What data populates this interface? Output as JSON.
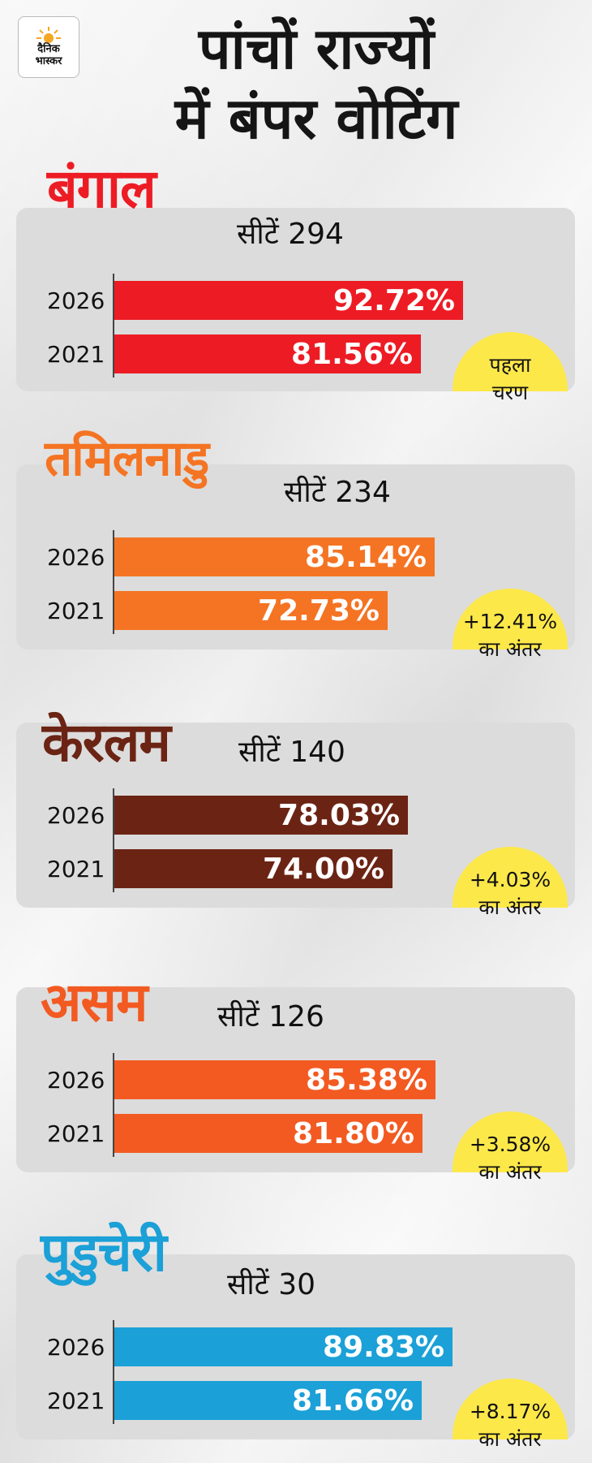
{
  "brand": {
    "line1": "दैनिक",
    "line2": "भास्कर"
  },
  "headline": {
    "line1": "पांचों राज्यों",
    "line2": "में बंपर वोटिंग"
  },
  "colors": {
    "bengal": "#ed1c24",
    "tamilnadu": "#f47423",
    "kerala": "#6b2414",
    "assam": "#f25a22",
    "puducherry": "#1ba0d7",
    "badge": "#fde84a"
  },
  "chart_data": {
    "type": "bar",
    "orientation": "horizontal",
    "categories": [
      "2026",
      "2021"
    ],
    "xlim": [
      0,
      100
    ],
    "unit": "%",
    "states": [
      {
        "key": "bengal",
        "name": "बंगाल",
        "seats_label": "सीटें 294",
        "values": [
          92.72,
          81.56
        ],
        "labels": [
          "92.72%",
          "81.56%"
        ],
        "badge": [
          "पहला",
          "चरण"
        ]
      },
      {
        "key": "tamilnadu",
        "name": "तमिलनाडु",
        "seats_label": "सीटें 234",
        "values": [
          85.14,
          72.73
        ],
        "labels": [
          "85.14%",
          "72.73%"
        ],
        "badge": [
          "+12.41%",
          "का अंतर"
        ]
      },
      {
        "key": "kerala",
        "name": "केरलम",
        "seats_label": "सीटें 140",
        "values": [
          78.03,
          74.0
        ],
        "labels": [
          "78.03%",
          "74.00%"
        ],
        "badge": [
          "+4.03%",
          "का अंतर"
        ]
      },
      {
        "key": "assam",
        "name": "असम",
        "seats_label": "सीटें 126",
        "values": [
          85.38,
          81.8
        ],
        "labels": [
          "85.38%",
          "81.80%"
        ],
        "badge": [
          "+3.58%",
          "का अंतर"
        ]
      },
      {
        "key": "puducherry",
        "name": "पुडुचेरी",
        "seats_label": "सीटें 30",
        "values": [
          89.83,
          81.66
        ],
        "labels": [
          "89.83%",
          "81.66%"
        ],
        "badge": [
          "+8.17%",
          "का अंतर"
        ]
      }
    ]
  }
}
